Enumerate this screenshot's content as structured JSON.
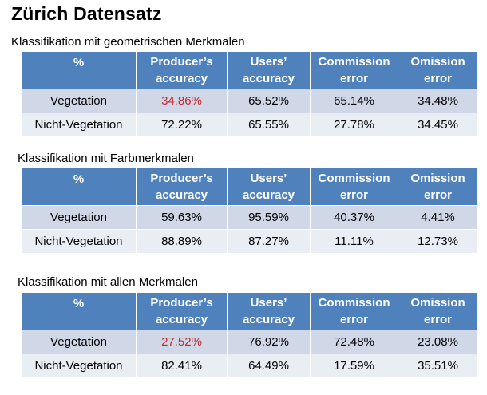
{
  "title": "Zürich Datensatz",
  "headers": {
    "label": "%",
    "col1": [
      "Producer’s",
      "accuracy"
    ],
    "col2": [
      "Users’",
      "accuracy"
    ],
    "col3": [
      "Commission",
      "error"
    ],
    "col4": [
      "Omission",
      "error"
    ]
  },
  "highlight_color": "#c0282d",
  "tables": [
    {
      "caption": "Klassifikation mit geometrischen Merkmalen",
      "rows": [
        {
          "label": "Vegetation",
          "values": [
            "34.86%",
            "65.52%",
            "65.14%",
            "34.48%"
          ],
          "highlight": [
            true,
            false,
            false,
            false
          ]
        },
        {
          "label": "Nicht-Vegetation",
          "values": [
            "72.22%",
            "65.55%",
            "27.78%",
            "34.45%"
          ],
          "highlight": [
            false,
            false,
            false,
            false
          ]
        }
      ]
    },
    {
      "caption": "Klassifikation mit Farbmerkmalen",
      "rows": [
        {
          "label": "Vegetation",
          "values": [
            "59.63%",
            "95.59%",
            "40.37%",
            "4.41%"
          ],
          "highlight": [
            false,
            false,
            false,
            false
          ]
        },
        {
          "label": "Nicht-Vegetation",
          "values": [
            "88.89%",
            "87.27%",
            "11.11%",
            "12.73%"
          ],
          "highlight": [
            false,
            false,
            false,
            false
          ]
        }
      ]
    },
    {
      "caption": "Klassifikation mit allen Merkmalen",
      "rows": [
        {
          "label": "Vegetation",
          "values": [
            "27.52%",
            "76.92%",
            "72.48%",
            "23.08%"
          ],
          "highlight": [
            true,
            false,
            false,
            false
          ]
        },
        {
          "label": "Nicht-Vegetation",
          "values": [
            "82.41%",
            "64.49%",
            "17.59%",
            "35.51%"
          ],
          "highlight": [
            false,
            false,
            false,
            false
          ]
        }
      ]
    }
  ]
}
